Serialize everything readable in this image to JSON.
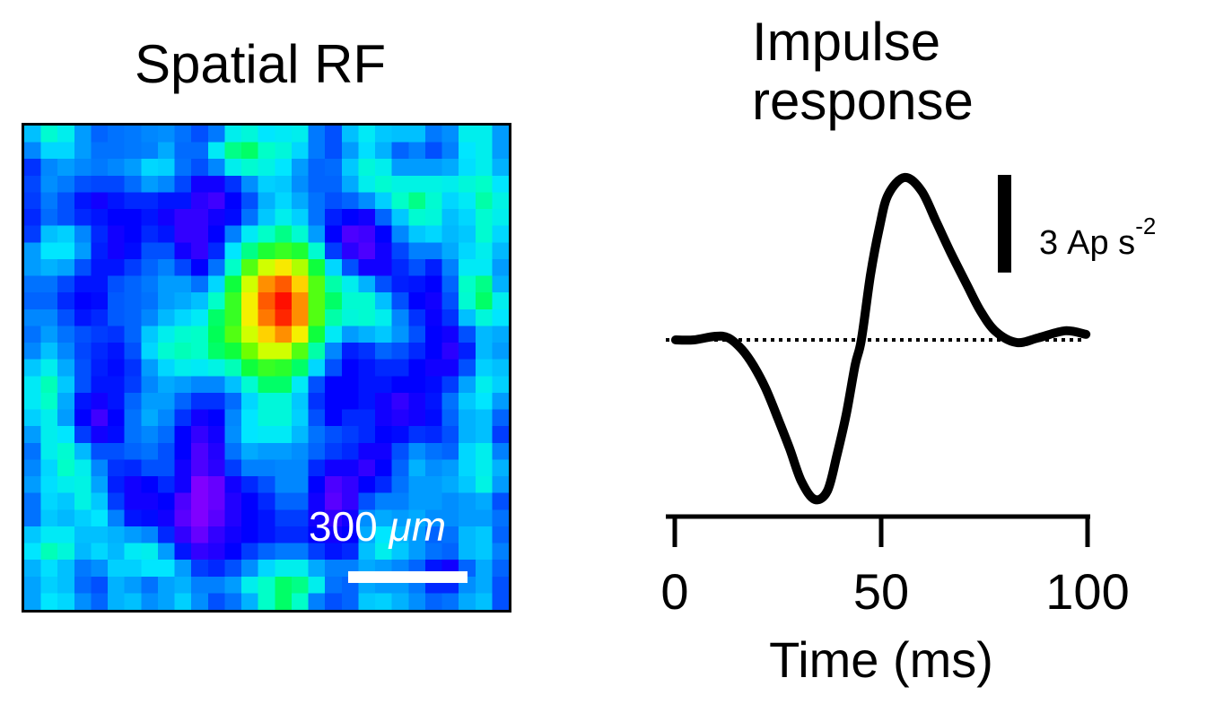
{
  "figure": {
    "left_title": "Spatial RF",
    "right_title_line1": "Impulse",
    "right_title_line2": "response"
  },
  "chart_data": [
    {
      "type": "heatmap",
      "title": "Spatial RF",
      "colormap": "jet (purple→blue→cyan→green→yellow→red)",
      "value_range": [
        0,
        1
      ],
      "scale_bar": {
        "label_value": "300",
        "label_unit": "μm",
        "length_um": 300
      },
      "rows": 29,
      "cols": 29,
      "values": [
        [
          0.35,
          0.45,
          0.42,
          0.3,
          0.22,
          0.24,
          0.25,
          0.27,
          0.28,
          0.24,
          0.2,
          0.25,
          0.42,
          0.44,
          0.4,
          0.41,
          0.42,
          0.25,
          0.2,
          0.35,
          0.41,
          0.36,
          0.35,
          0.35,
          0.25,
          0.28,
          0.42,
          0.42,
          0.3
        ],
        [
          0.27,
          0.38,
          0.38,
          0.3,
          0.24,
          0.24,
          0.25,
          0.26,
          0.32,
          0.23,
          0.23,
          0.41,
          0.5,
          0.52,
          0.46,
          0.44,
          0.38,
          0.25,
          0.2,
          0.3,
          0.39,
          0.33,
          0.22,
          0.26,
          0.2,
          0.26,
          0.4,
          0.42,
          0.3
        ],
        [
          0.17,
          0.27,
          0.3,
          0.27,
          0.25,
          0.27,
          0.3,
          0.38,
          0.37,
          0.24,
          0.2,
          0.27,
          0.42,
          0.45,
          0.43,
          0.4,
          0.3,
          0.22,
          0.23,
          0.36,
          0.44,
          0.42,
          0.3,
          0.3,
          0.3,
          0.32,
          0.39,
          0.42,
          0.33
        ],
        [
          0.19,
          0.28,
          0.25,
          0.2,
          0.19,
          0.19,
          0.23,
          0.3,
          0.27,
          0.19,
          0.1,
          0.1,
          0.17,
          0.28,
          0.37,
          0.36,
          0.28,
          0.22,
          0.22,
          0.32,
          0.42,
          0.45,
          0.43,
          0.43,
          0.43,
          0.42,
          0.44,
          0.46,
          0.4
        ],
        [
          0.18,
          0.25,
          0.2,
          0.14,
          0.1,
          0.14,
          0.16,
          0.16,
          0.14,
          0.14,
          0.07,
          0.05,
          0.12,
          0.2,
          0.33,
          0.38,
          0.32,
          0.24,
          0.2,
          0.22,
          0.28,
          0.37,
          0.46,
          0.5,
          0.45,
          0.38,
          0.41,
          0.48,
          0.43
        ],
        [
          0.16,
          0.23,
          0.2,
          0.16,
          0.14,
          0.12,
          0.12,
          0.14,
          0.1,
          0.06,
          0.06,
          0.1,
          0.13,
          0.24,
          0.36,
          0.42,
          0.37,
          0.24,
          0.15,
          0.12,
          0.1,
          0.22,
          0.36,
          0.45,
          0.44,
          0.35,
          0.38,
          0.45,
          0.42
        ],
        [
          0.18,
          0.35,
          0.37,
          0.27,
          0.16,
          0.1,
          0.12,
          0.16,
          0.14,
          0.06,
          0.06,
          0.12,
          0.26,
          0.41,
          0.46,
          0.5,
          0.45,
          0.3,
          0.12,
          0.04,
          0.05,
          0.12,
          0.27,
          0.36,
          0.38,
          0.34,
          0.36,
          0.45,
          0.38
        ],
        [
          0.3,
          0.4,
          0.4,
          0.3,
          0.15,
          0.1,
          0.13,
          0.2,
          0.2,
          0.1,
          0.06,
          0.16,
          0.4,
          0.5,
          0.56,
          0.58,
          0.56,
          0.45,
          0.18,
          0.07,
          0.04,
          0.1,
          0.19,
          0.26,
          0.26,
          0.32,
          0.38,
          0.42,
          0.34
        ],
        [
          0.3,
          0.33,
          0.31,
          0.2,
          0.14,
          0.14,
          0.18,
          0.22,
          0.26,
          0.19,
          0.12,
          0.24,
          0.46,
          0.6,
          0.68,
          0.73,
          0.66,
          0.55,
          0.38,
          0.2,
          0.1,
          0.1,
          0.16,
          0.2,
          0.15,
          0.26,
          0.41,
          0.41,
          0.3
        ],
        [
          0.24,
          0.24,
          0.19,
          0.14,
          0.14,
          0.2,
          0.22,
          0.25,
          0.3,
          0.3,
          0.24,
          0.38,
          0.55,
          0.68,
          0.82,
          0.88,
          0.76,
          0.6,
          0.48,
          0.42,
          0.33,
          0.2,
          0.15,
          0.14,
          0.12,
          0.22,
          0.46,
          0.5,
          0.33
        ],
        [
          0.22,
          0.22,
          0.16,
          0.12,
          0.13,
          0.21,
          0.22,
          0.24,
          0.3,
          0.32,
          0.35,
          0.46,
          0.58,
          0.72,
          0.88,
          0.98,
          0.82,
          0.6,
          0.52,
          0.45,
          0.45,
          0.35,
          0.2,
          0.12,
          0.1,
          0.2,
          0.45,
          0.52,
          0.42
        ],
        [
          0.27,
          0.27,
          0.2,
          0.14,
          0.16,
          0.21,
          0.22,
          0.27,
          0.34,
          0.38,
          0.41,
          0.52,
          0.58,
          0.72,
          0.84,
          0.95,
          0.82,
          0.6,
          0.48,
          0.44,
          0.45,
          0.42,
          0.27,
          0.17,
          0.11,
          0.17,
          0.35,
          0.44,
          0.4
        ],
        [
          0.24,
          0.3,
          0.24,
          0.2,
          0.18,
          0.17,
          0.22,
          0.36,
          0.42,
          0.45,
          0.46,
          0.53,
          0.6,
          0.68,
          0.76,
          0.82,
          0.72,
          0.55,
          0.41,
          0.3,
          0.33,
          0.36,
          0.29,
          0.2,
          0.12,
          0.1,
          0.2,
          0.34,
          0.32
        ],
        [
          0.27,
          0.35,
          0.27,
          0.19,
          0.16,
          0.14,
          0.2,
          0.38,
          0.45,
          0.47,
          0.46,
          0.52,
          0.55,
          0.62,
          0.68,
          0.68,
          0.6,
          0.48,
          0.27,
          0.15,
          0.17,
          0.22,
          0.2,
          0.16,
          0.12,
          0.07,
          0.15,
          0.34,
          0.3
        ],
        [
          0.36,
          0.42,
          0.32,
          0.2,
          0.15,
          0.13,
          0.17,
          0.3,
          0.38,
          0.42,
          0.41,
          0.43,
          0.47,
          0.55,
          0.58,
          0.57,
          0.52,
          0.38,
          0.2,
          0.12,
          0.14,
          0.16,
          0.16,
          0.12,
          0.1,
          0.1,
          0.2,
          0.37,
          0.35
        ],
        [
          0.41,
          0.47,
          0.36,
          0.2,
          0.14,
          0.14,
          0.18,
          0.27,
          0.32,
          0.3,
          0.27,
          0.27,
          0.35,
          0.45,
          0.52,
          0.52,
          0.41,
          0.2,
          0.12,
          0.12,
          0.14,
          0.14,
          0.12,
          0.12,
          0.13,
          0.18,
          0.31,
          0.42,
          0.37
        ],
        [
          0.41,
          0.46,
          0.32,
          0.14,
          0.1,
          0.14,
          0.22,
          0.3,
          0.3,
          0.22,
          0.17,
          0.17,
          0.23,
          0.38,
          0.44,
          0.44,
          0.36,
          0.17,
          0.12,
          0.12,
          0.14,
          0.1,
          0.06,
          0.1,
          0.14,
          0.24,
          0.36,
          0.4,
          0.3
        ],
        [
          0.37,
          0.42,
          0.3,
          0.12,
          0.05,
          0.12,
          0.24,
          0.32,
          0.27,
          0.17,
          0.1,
          0.12,
          0.27,
          0.4,
          0.44,
          0.44,
          0.37,
          0.2,
          0.12,
          0.16,
          0.16,
          0.1,
          0.08,
          0.1,
          0.13,
          0.22,
          0.33,
          0.35,
          0.22
        ],
        [
          0.3,
          0.42,
          0.4,
          0.18,
          0.1,
          0.13,
          0.24,
          0.27,
          0.23,
          0.12,
          0.06,
          0.1,
          0.28,
          0.4,
          0.41,
          0.41,
          0.34,
          0.24,
          0.2,
          0.18,
          0.16,
          0.12,
          0.13,
          0.17,
          0.16,
          0.2,
          0.33,
          0.35,
          0.18
        ],
        [
          0.24,
          0.42,
          0.45,
          0.34,
          0.2,
          0.2,
          0.22,
          0.24,
          0.2,
          0.12,
          0.04,
          0.08,
          0.24,
          0.32,
          0.3,
          0.3,
          0.28,
          0.22,
          0.18,
          0.16,
          0.1,
          0.1,
          0.2,
          0.28,
          0.24,
          0.22,
          0.38,
          0.42,
          0.26
        ],
        [
          0.27,
          0.38,
          0.46,
          0.42,
          0.27,
          0.17,
          0.16,
          0.2,
          0.2,
          0.1,
          0.04,
          0.07,
          0.18,
          0.26,
          0.26,
          0.27,
          0.27,
          0.16,
          0.1,
          0.1,
          0.06,
          0.12,
          0.22,
          0.33,
          0.28,
          0.3,
          0.38,
          0.42,
          0.33
        ],
        [
          0.3,
          0.39,
          0.42,
          0.43,
          0.31,
          0.15,
          0.1,
          0.12,
          0.16,
          0.1,
          0.0,
          0.02,
          0.1,
          0.16,
          0.2,
          0.27,
          0.27,
          0.12,
          0.04,
          0.06,
          0.12,
          0.16,
          0.24,
          0.3,
          0.3,
          0.32,
          0.36,
          0.43,
          0.3
        ],
        [
          0.24,
          0.38,
          0.36,
          0.43,
          0.36,
          0.18,
          0.1,
          0.1,
          0.12,
          0.04,
          0.0,
          0.02,
          0.08,
          0.12,
          0.16,
          0.22,
          0.22,
          0.1,
          0.03,
          0.06,
          0.2,
          0.26,
          0.26,
          0.3,
          0.3,
          0.28,
          0.3,
          0.32,
          0.2
        ],
        [
          0.24,
          0.36,
          0.34,
          0.37,
          0.4,
          0.26,
          0.14,
          0.13,
          0.1,
          0.03,
          0.0,
          0.03,
          0.08,
          0.12,
          0.14,
          0.18,
          0.18,
          0.1,
          0.06,
          0.1,
          0.28,
          0.32,
          0.3,
          0.32,
          0.28,
          0.28,
          0.3,
          0.3,
          0.24
        ],
        [
          0.36,
          0.41,
          0.41,
          0.35,
          0.35,
          0.33,
          0.3,
          0.27,
          0.16,
          0.06,
          0.02,
          0.06,
          0.1,
          0.12,
          0.14,
          0.16,
          0.16,
          0.12,
          0.1,
          0.12,
          0.32,
          0.4,
          0.34,
          0.3,
          0.22,
          0.24,
          0.34,
          0.36,
          0.22
        ],
        [
          0.4,
          0.47,
          0.44,
          0.34,
          0.38,
          0.34,
          0.41,
          0.42,
          0.3,
          0.14,
          0.06,
          0.08,
          0.12,
          0.18,
          0.22,
          0.25,
          0.25,
          0.18,
          0.14,
          0.16,
          0.35,
          0.42,
          0.36,
          0.3,
          0.24,
          0.22,
          0.34,
          0.36,
          0.26
        ],
        [
          0.33,
          0.39,
          0.35,
          0.25,
          0.28,
          0.37,
          0.37,
          0.4,
          0.4,
          0.3,
          0.18,
          0.16,
          0.2,
          0.28,
          0.38,
          0.42,
          0.42,
          0.32,
          0.26,
          0.26,
          0.32,
          0.3,
          0.27,
          0.22,
          0.14,
          0.1,
          0.22,
          0.32,
          0.22
        ],
        [
          0.31,
          0.37,
          0.35,
          0.23,
          0.2,
          0.33,
          0.3,
          0.24,
          0.31,
          0.33,
          0.26,
          0.26,
          0.3,
          0.42,
          0.46,
          0.52,
          0.5,
          0.42,
          0.24,
          0.22,
          0.32,
          0.3,
          0.3,
          0.25,
          0.16,
          0.16,
          0.28,
          0.32,
          0.2
        ],
        [
          0.31,
          0.4,
          0.38,
          0.28,
          0.22,
          0.33,
          0.35,
          0.28,
          0.31,
          0.37,
          0.28,
          0.2,
          0.24,
          0.33,
          0.46,
          0.52,
          0.46,
          0.26,
          0.2,
          0.22,
          0.36,
          0.37,
          0.33,
          0.28,
          0.22,
          0.24,
          0.32,
          0.35,
          0.2
        ]
      ]
    },
    {
      "type": "line",
      "title": "Impulse response",
      "xlabel": "Time (ms)",
      "ylabel": "",
      "xlim": [
        0,
        100
      ],
      "ylim": [
        -5.5,
        5.5
      ],
      "xticks": [
        0,
        50,
        100
      ],
      "xtick_labels": [
        "0",
        "50",
        "100"
      ],
      "grid": false,
      "baseline": {
        "y": 0,
        "style": "dotted"
      },
      "scale_bar": {
        "value": 3,
        "label_number": "3",
        "label_unit": "Ap s",
        "label_exponent": "-2"
      },
      "series": [
        {
          "name": "impulse-response",
          "x": [
            0.2,
            4.6,
            9.8,
            13.0,
            16.3,
            19.1,
            22.0,
            25.0,
            27.8,
            30.7,
            33.9,
            37.0,
            39.3,
            41.5,
            43.7,
            45.2,
            47.4,
            49.6,
            51.7,
            55.7,
            59.8,
            63.3,
            67.0,
            70.7,
            74.1,
            77.8,
            82.8,
            88.0,
            94.6,
            99.6
          ],
          "y": [
            0,
            0,
            0.11,
            0.06,
            -0.3,
            -0.8,
            -1.49,
            -2.42,
            -3.33,
            -4.35,
            -4.9,
            -4.63,
            -3.53,
            -2.31,
            -0.77,
            0,
            1.98,
            3.47,
            4.46,
            4.99,
            4.57,
            3.64,
            2.64,
            1.71,
            0.88,
            0.25,
            -0.08,
            0.06,
            0.28,
            0.17
          ]
        }
      ]
    }
  ]
}
